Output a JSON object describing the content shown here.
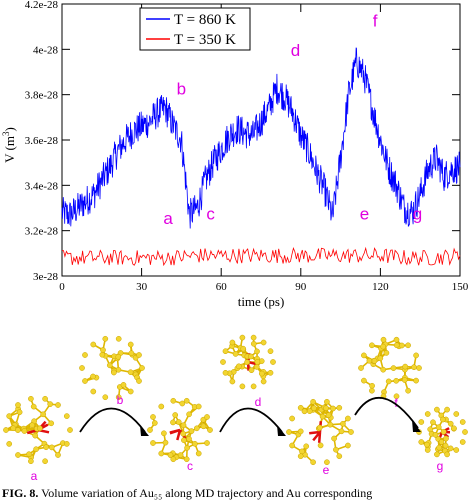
{
  "chart_data": {
    "type": "line",
    "xlabel": "time (ps)",
    "ylabel": "V (m³)",
    "ylabel_main": "V (m",
    "ylabel_sup": "3",
    "ylabel_close": ")",
    "xlim": [
      0,
      150
    ],
    "ylim": [
      3e-28,
      4.2e-28
    ],
    "x_ticks": [
      0,
      30,
      60,
      90,
      120,
      150
    ],
    "x_tick_labels": [
      "0",
      "30",
      "60",
      "90",
      "120",
      "150"
    ],
    "y_ticks": [
      3e-28,
      3.2e-28,
      3.4e-28,
      3.6e-28,
      3.8e-28,
      4e-28,
      4.2e-28
    ],
    "y_tick_labels": [
      "3e-28",
      "3.2e-28",
      "3.4e-28",
      "3.6e-28",
      "3.8e-28",
      "4e-28",
      "4.2e-28"
    ],
    "legend_position": "top-left",
    "series": [
      {
        "name": "T = 860 K",
        "color": "#0000ff",
        "x": [
          0,
          3,
          6,
          9,
          12,
          15,
          18,
          21,
          24,
          27,
          30,
          33,
          36,
          39,
          42,
          45,
          48,
          51,
          54,
          57,
          60,
          63,
          66,
          69,
          72,
          75,
          78,
          81,
          84,
          87,
          90,
          93,
          96,
          99,
          102,
          105,
          108,
          111,
          114,
          117,
          120,
          123,
          126,
          129,
          132,
          135,
          138,
          141,
          144,
          147,
          150
        ],
        "y": [
          3.28e-28,
          3.27e-28,
          3.3e-28,
          3.33e-28,
          3.36e-28,
          3.42e-28,
          3.48e-28,
          3.55e-28,
          3.6e-28,
          3.64e-28,
          3.66e-28,
          3.68e-28,
          3.72e-28,
          3.74e-28,
          3.66e-28,
          3.6e-28,
          3.27e-28,
          3.3e-28,
          3.42e-28,
          3.5e-28,
          3.56e-28,
          3.62e-28,
          3.65e-28,
          3.63e-28,
          3.62e-28,
          3.68e-28,
          3.74e-28,
          3.83e-28,
          3.79e-28,
          3.72e-28,
          3.62e-28,
          3.55e-28,
          3.46e-28,
          3.38e-28,
          3.26e-28,
          3.52e-28,
          3.8e-28,
          3.95e-28,
          3.88e-28,
          3.74e-28,
          3.6e-28,
          3.48e-28,
          3.4e-28,
          3.3e-28,
          3.28e-28,
          3.36e-28,
          3.47e-28,
          3.52e-28,
          3.44e-28,
          3.47e-28,
          3.48e-28
        ]
      },
      {
        "name": "T = 350 K",
        "color": "#ff0000",
        "x": [
          0,
          10,
          20,
          30,
          40,
          50,
          60,
          70,
          80,
          90,
          100,
          110,
          120,
          130,
          140,
          150
        ],
        "y": [
          3.08e-28,
          3.08e-28,
          3.08e-28,
          3.08e-28,
          3.08e-28,
          3.09e-28,
          3.09e-28,
          3.09e-28,
          3.09e-28,
          3.09e-28,
          3.09e-28,
          3.09e-28,
          3.09e-28,
          3.08e-28,
          3.08e-28,
          3.09e-28
        ]
      }
    ],
    "annotations": [
      {
        "text": "a",
        "x": 40,
        "y": 3.23e-28
      },
      {
        "text": "b",
        "x": 45,
        "y": 3.8e-28
      },
      {
        "text": "c",
        "x": 56,
        "y": 3.25e-28
      },
      {
        "text": "d",
        "x": 88,
        "y": 3.97e-28
      },
      {
        "text": "e",
        "x": 114,
        "y": 3.25e-28
      },
      {
        "text": "f",
        "x": 118,
        "y": 4.1e-28
      },
      {
        "text": "g",
        "x": 134,
        "y": 3.25e-28
      }
    ]
  },
  "clusters": [
    {
      "label": "a"
    },
    {
      "label": "b"
    },
    {
      "label": "c"
    },
    {
      "label": "d"
    },
    {
      "label": "e"
    },
    {
      "label": "f"
    },
    {
      "label": "g"
    }
  ],
  "caption": {
    "fig_label": "FIG. 8.",
    "text": "Volume variation of Au₅₅ along MD trajectory and Au corresponding"
  },
  "colors": {
    "atom": "#f2d530",
    "bond": "#e0b800",
    "core": "#e01010",
    "arrow": "#000000"
  }
}
